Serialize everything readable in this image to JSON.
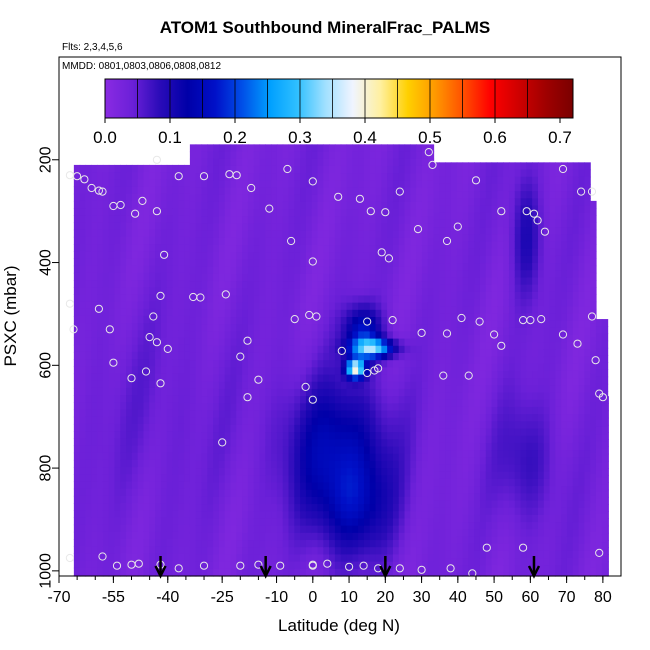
{
  "chart_data": {
    "type": "heatmap",
    "title": "ATOM1 Southbound MineralFrac_PALMS",
    "annotations": [
      "Flts: 2,3,4,5,6",
      "MMDD: 0801,0803,0806,0808,0812"
    ],
    "xlabel": "Latitude (deg N)",
    "ylabel": "PSXC (mbar)",
    "xlim": [
      -70,
      85
    ],
    "ylim": [
      1010,
      0
    ],
    "x_ticks": [
      "-70",
      "-55",
      "-40",
      "-25",
      "-10",
      "0",
      "10",
      "20",
      "30",
      "40",
      "50",
      "60",
      "70",
      "80"
    ],
    "y_ticks": [
      "200",
      "400",
      "600",
      "800",
      "1000"
    ],
    "colorbar": {
      "range": [
        0.0,
        0.72
      ],
      "tick_labels": [
        "0.0",
        "0.1",
        "0.2",
        "0.3",
        "0.4",
        "0.5",
        "0.6",
        "0.7"
      ],
      "colors": [
        "#8a2be2",
        "#6b20d8",
        "#2a0bb8",
        "#0000a8",
        "#0010c8",
        "#0050e8",
        "#00a0ff",
        "#30c0ff",
        "#a0e0ff",
        "#f0f4ff",
        "#fff0a0",
        "#ffd000",
        "#ff9800",
        "#ff5000",
        "#ff0000",
        "#d00000",
        "#a00000",
        "#7a0000"
      ]
    },
    "grid": false,
    "field": {
      "background_value": 0.03,
      "coverage_top_mbar": [
        [
          -67,
          210
        ],
        [
          -35,
          210
        ],
        [
          -35,
          170
        ],
        [
          33,
          170
        ],
        [
          33,
          205
        ],
        [
          75,
          205
        ],
        [
          75,
          280
        ],
        [
          78,
          280
        ],
        [
          78,
          510
        ],
        [
          80,
          510
        ],
        [
          80,
          590
        ],
        [
          81,
          590
        ],
        [
          81,
          660
        ]
      ],
      "features": [
        {
          "lat": 6,
          "p": 750,
          "wlat": 14,
          "wp": 130,
          "value": 0.11
        },
        {
          "lat": 10,
          "p": 870,
          "wlat": 11,
          "wp": 100,
          "value": 0.09
        },
        {
          "lat": 13,
          "p": 530,
          "wlat": 5,
          "wp": 50,
          "value": 0.14
        },
        {
          "lat": 16,
          "p": 560,
          "wlat": 6,
          "wp": 18,
          "value": 0.24
        },
        {
          "lat": 11,
          "p": 600,
          "wlat": 2.5,
          "wp": 18,
          "value": 0.34
        },
        {
          "lat": 58,
          "p": 340,
          "wlat": 4,
          "wp": 120,
          "value": 0.07
        },
        {
          "lat": 58,
          "p": 780,
          "wlat": 8,
          "wp": 120,
          "value": 0.05
        },
        {
          "lat": -45,
          "p": 680,
          "wlat": 22,
          "wp": 200,
          "value": 0.015
        }
      ]
    },
    "sample_points": [
      [
        -67,
        230
      ],
      [
        -65,
        232
      ],
      [
        -63,
        238
      ],
      [
        -61,
        255
      ],
      [
        -59,
        260
      ],
      [
        -58,
        262
      ],
      [
        -55,
        290
      ],
      [
        -53,
        288
      ],
      [
        -49,
        305
      ],
      [
        -43,
        300
      ],
      [
        -41,
        385
      ],
      [
        -47,
        280
      ],
      [
        -37,
        232
      ],
      [
        -30,
        232
      ],
      [
        -23,
        228
      ],
      [
        -21,
        230
      ],
      [
        -17,
        255
      ],
      [
        -43,
        200
      ],
      [
        -7,
        218
      ],
      [
        0,
        242
      ],
      [
        7,
        272
      ],
      [
        13,
        276
      ],
      [
        16,
        300
      ],
      [
        20,
        302
      ],
      [
        24,
        262
      ],
      [
        32,
        185
      ],
      [
        33,
        210
      ],
      [
        45,
        240
      ],
      [
        52,
        300
      ],
      [
        59,
        300
      ],
      [
        61,
        305
      ],
      [
        62,
        318
      ],
      [
        64,
        340
      ],
      [
        69,
        218
      ],
      [
        74,
        262
      ],
      [
        77,
        262
      ],
      [
        -12,
        295
      ],
      [
        -6,
        358
      ],
      [
        0,
        398
      ],
      [
        19,
        380
      ],
      [
        21,
        392
      ],
      [
        29,
        335
      ],
      [
        37,
        358
      ],
      [
        40,
        330
      ],
      [
        -67,
        480
      ],
      [
        -59,
        490
      ],
      [
        -66,
        530
      ],
      [
        -56,
        530
      ],
      [
        -44,
        505
      ],
      [
        -42,
        465
      ],
      [
        -33,
        467
      ],
      [
        -31,
        468
      ],
      [
        -24,
        462
      ],
      [
        -43,
        555
      ],
      [
        -45,
        545
      ],
      [
        -40,
        568
      ],
      [
        -55,
        595
      ],
      [
        -50,
        625
      ],
      [
        -46,
        612
      ],
      [
        -42,
        635
      ],
      [
        -20,
        583
      ],
      [
        -18,
        552
      ],
      [
        -5,
        510
      ],
      [
        -1,
        502
      ],
      [
        1,
        505
      ],
      [
        8,
        572
      ],
      [
        15,
        515
      ],
      [
        18,
        606
      ],
      [
        22,
        512
      ],
      [
        30,
        537
      ],
      [
        37,
        538
      ],
      [
        41,
        508
      ],
      [
        46,
        515
      ],
      [
        50,
        540
      ],
      [
        52,
        562
      ],
      [
        58,
        512
      ],
      [
        60,
        512
      ],
      [
        63,
        510
      ],
      [
        69,
        540
      ],
      [
        73,
        558
      ],
      [
        77,
        505
      ],
      [
        78,
        590
      ],
      [
        79,
        655
      ],
      [
        80,
        662
      ],
      [
        36,
        620
      ],
      [
        43,
        620
      ],
      [
        17,
        610
      ],
      [
        15,
        615
      ],
      [
        -25,
        750
      ],
      [
        -18,
        662
      ],
      [
        -15,
        628
      ],
      [
        -2,
        642
      ],
      [
        0,
        667
      ],
      [
        -67,
        975
      ],
      [
        -58,
        972
      ],
      [
        -54,
        990
      ],
      [
        -50,
        988
      ],
      [
        -48,
        986
      ],
      [
        -42,
        988
      ],
      [
        -37,
        995
      ],
      [
        -30,
        990
      ],
      [
        -20,
        990
      ],
      [
        -15,
        988
      ],
      [
        -9,
        990
      ],
      [
        0,
        988
      ],
      [
        0,
        990
      ],
      [
        4,
        986
      ],
      [
        10,
        992
      ],
      [
        14,
        990
      ],
      [
        18,
        995
      ],
      [
        24,
        995
      ],
      [
        30,
        998
      ],
      [
        38,
        995
      ],
      [
        44,
        1005
      ],
      [
        48,
        955
      ],
      [
        58,
        955
      ],
      [
        79,
        965
      ]
    ],
    "arrows_lat": [
      -42,
      -13,
      20,
      61
    ]
  }
}
